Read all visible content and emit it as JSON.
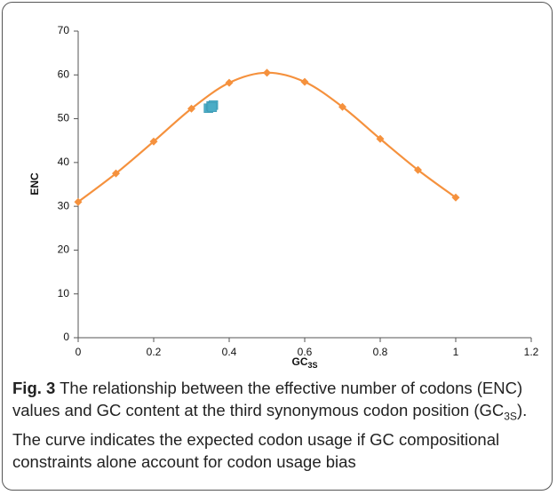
{
  "chart_data": {
    "type": "line",
    "x_label": "GC",
    "x_label_sub": "3S",
    "y_label": "ENC",
    "xlim": [
      0,
      1.2
    ],
    "xticks": [
      0,
      0.2,
      0.4,
      0.6,
      0.8,
      1,
      1.2
    ],
    "ylim": [
      0,
      70
    ],
    "yticks": [
      0,
      10,
      20,
      30,
      40,
      50,
      60,
      70
    ],
    "series": [
      {
        "type": "line",
        "color": "#f5913d",
        "x": [
          0,
          0.1,
          0.2,
          0.3,
          0.4,
          0.5,
          0.6,
          0.7,
          0.8,
          0.9,
          1
        ],
        "values": [
          31,
          37.5,
          44.8,
          52.3,
          58.2,
          60.5,
          58.4,
          52.7,
          45.4,
          38.3,
          32
        ]
      },
      {
        "type": "scatter",
        "color": "#4bacc6",
        "x": [
          0.345,
          0.352,
          0.358,
          0.355
        ],
        "values": [
          52.4,
          52.9,
          53.1,
          52.6
        ]
      }
    ]
  },
  "caption": {
    "label": "Fig. 3",
    "text_before": " The relationship between the effective number of codons (ENC) values and GC content at the third synonymous codon position (GC",
    "text_sub": "3S",
    "text_after": "). The curve indicates the expected codon usage if GC compositional constraints alone account for codon usage bias"
  }
}
